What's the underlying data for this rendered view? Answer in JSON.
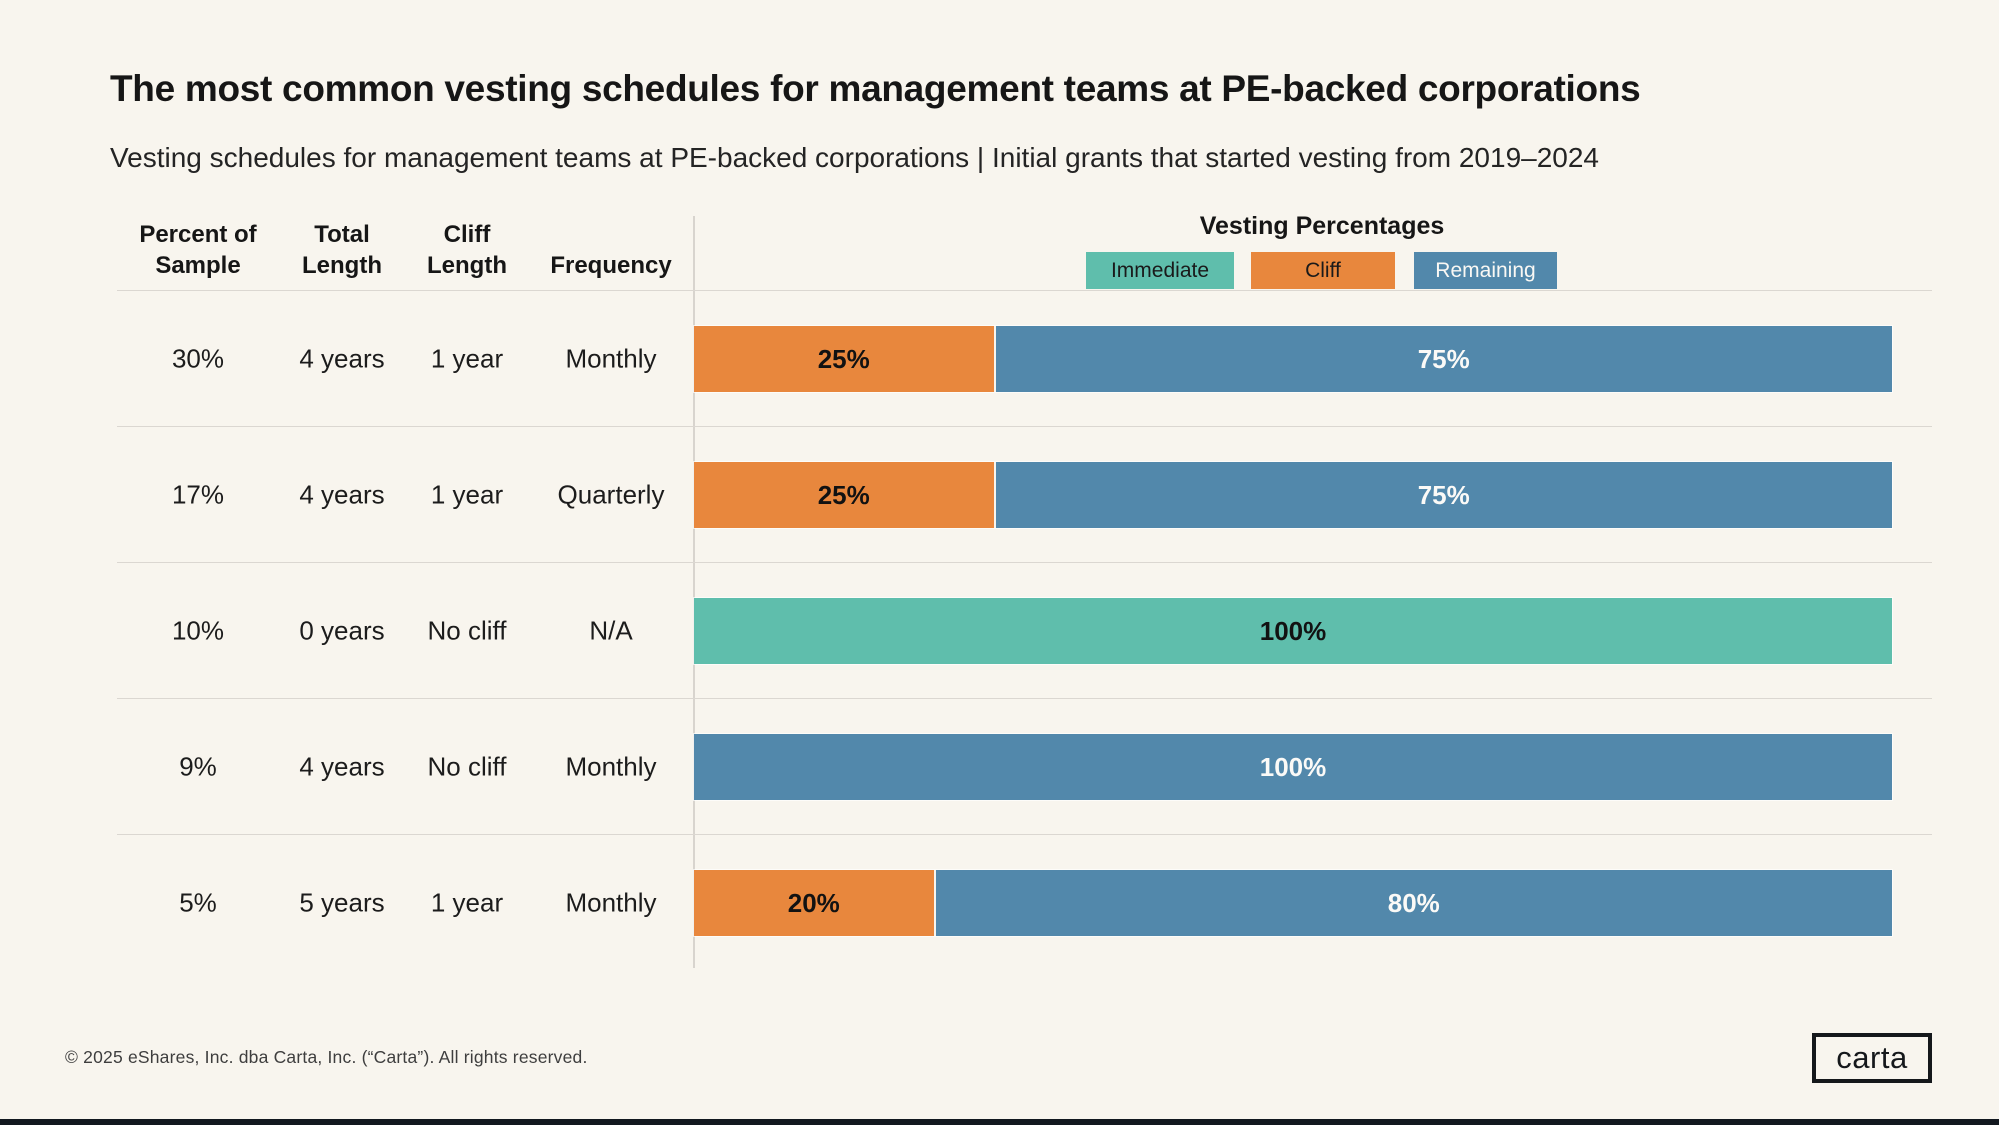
{
  "page": {
    "background_color": "#F8F5EE",
    "bottom_bar_color": "#12181F"
  },
  "header": {
    "title": "The most common vesting schedules for management teams at PE-backed corporations",
    "subtitle": "Vesting schedules for management teams at PE-backed corporations | Initial grants that started vesting from 2019–2024"
  },
  "table": {
    "columns": [
      {
        "line1": "Percent of",
        "line2": "Sample"
      },
      {
        "line1": "Total",
        "line2": "Length"
      },
      {
        "line1": "Cliff",
        "line2": "Length"
      },
      {
        "line1": "",
        "line2": "Frequency"
      }
    ]
  },
  "legend": {
    "title": "Vesting Percentages",
    "items": [
      {
        "label": "Immediate",
        "color": "#5FBEAC",
        "text_color": "#1A1A1A"
      },
      {
        "label": "Cliff",
        "color": "#E8873D",
        "text_color": "#1A1A1A"
      },
      {
        "label": "Remaining",
        "color": "#5288AB",
        "text_color": "#FFFFFF"
      }
    ]
  },
  "rows": [
    {
      "percent": "30%",
      "total_length": "4 years",
      "cliff_length": "1 year",
      "frequency": "Monthly",
      "segments": [
        {
          "name": "Cliff",
          "value": 25,
          "label": "25%"
        },
        {
          "name": "Remaining",
          "value": 75,
          "label": "75%"
        }
      ]
    },
    {
      "percent": "17%",
      "total_length": "4 years",
      "cliff_length": "1 year",
      "frequency": "Quarterly",
      "segments": [
        {
          "name": "Cliff",
          "value": 25,
          "label": "25%"
        },
        {
          "name": "Remaining",
          "value": 75,
          "label": "75%"
        }
      ]
    },
    {
      "percent": "10%",
      "total_length": "0 years",
      "cliff_length": "No cliff",
      "frequency": "N/A",
      "segments": [
        {
          "name": "Immediate",
          "value": 100,
          "label": "100%"
        }
      ]
    },
    {
      "percent": "9%",
      "total_length": "4 years",
      "cliff_length": "No cliff",
      "frequency": "Monthly",
      "segments": [
        {
          "name": "Remaining",
          "value": 100,
          "label": "100%"
        }
      ]
    },
    {
      "percent": "5%",
      "total_length": "5 years",
      "cliff_length": "1 year",
      "frequency": "Monthly",
      "segments": [
        {
          "name": "Cliff",
          "value": 20,
          "label": "20%"
        },
        {
          "name": "Remaining",
          "value": 80,
          "label": "80%"
        }
      ]
    }
  ],
  "chart_data": {
    "type": "bar",
    "stacked": true,
    "orientation": "horizontal",
    "unit": "%",
    "title": "Vesting Percentages",
    "categories": [
      "30% of sample | 4 years | 1 year cliff | Monthly",
      "17% of sample | 4 years | 1 year cliff | Quarterly",
      "10% of sample | 0 years | No cliff | N/A",
      "9% of sample | 4 years | No cliff | Monthly",
      "5% of sample | 5 years | 1 year cliff | Monthly"
    ],
    "series": [
      {
        "name": "Immediate",
        "color": "#5FBEAC",
        "values": [
          0,
          0,
          100,
          0,
          0
        ]
      },
      {
        "name": "Cliff",
        "color": "#E8873D",
        "values": [
          25,
          25,
          0,
          0,
          20
        ]
      },
      {
        "name": "Remaining",
        "color": "#5288AB",
        "values": [
          75,
          75,
          0,
          100,
          80
        ]
      }
    ],
    "xlim": [
      0,
      100
    ],
    "grid": false,
    "legend_position": "top"
  },
  "footer": {
    "copyright": "© 2025 eShares, Inc. dba Carta, Inc. (“Carta”). All rights reserved.",
    "logo_text": "carta"
  }
}
